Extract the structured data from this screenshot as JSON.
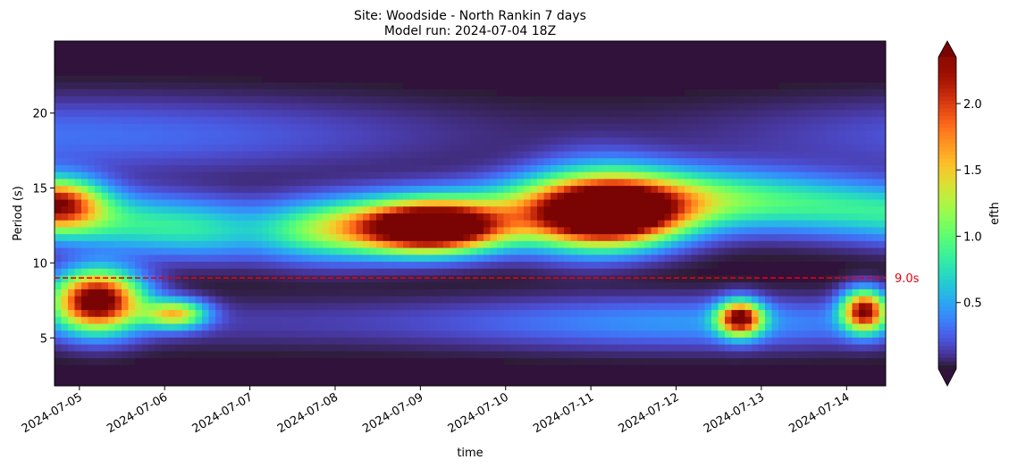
{
  "chart_data": {
    "type": "heatmap",
    "title": "Site: Woodside - North Rankin 7 days",
    "subtitle": "Model run: 2024-07-04 18Z",
    "xlabel": "time",
    "ylabel": "Period (s)",
    "x_range": [
      "2024-07-04T17:00",
      "2024-07-14T11:00"
    ],
    "x_ticks": [
      "2024-07-05",
      "2024-07-06",
      "2024-07-07",
      "2024-07-08",
      "2024-07-09",
      "2024-07-10",
      "2024-07-11",
      "2024-07-12",
      "2024-07-13",
      "2024-07-14"
    ],
    "y_ticks": [
      5,
      10,
      15,
      20
    ],
    "ylim": [
      1.8,
      24.8
    ],
    "colorbar": {
      "label": "efth",
      "vmin": 0.0,
      "vmax": 2.35,
      "ticks": [
        "0.5",
        "1.0",
        "1.5",
        "2.0"
      ],
      "extend": "both",
      "colormap": "turbo"
    },
    "reference_line": {
      "y": 9.0,
      "label": "9.0s",
      "color": "#e8000b",
      "style": "dashed"
    },
    "hotspots": [
      {
        "x": "2024-07-05T05:00",
        "y": 7.5,
        "peak": 2.6,
        "width_days": 0.5,
        "height_s": 1.9
      },
      {
        "x": "2024-07-04T18:00",
        "y": 14.0,
        "peak": 1.7,
        "width_days": 0.5,
        "height_s": 1.6
      },
      {
        "x": "2024-07-06T03:00",
        "y": 6.6,
        "peak": 1.4,
        "width_days": 0.35,
        "height_s": 0.9
      },
      {
        "x": "2024-07-09T04:00",
        "y": 12.3,
        "peak": 2.5,
        "width_days": 0.75,
        "height_s": 1.5
      },
      {
        "x": "2024-07-11T05:00",
        "y": 13.3,
        "peak": 2.8,
        "width_days": 0.8,
        "height_s": 2.0
      },
      {
        "x": "2024-07-12T18:00",
        "y": 6.3,
        "peak": 2.2,
        "width_days": 0.25,
        "height_s": 1.1
      },
      {
        "x": "2024-07-14T05:00",
        "y": 6.8,
        "peak": 2.2,
        "width_days": 0.25,
        "height_s": 1.3
      }
    ]
  }
}
